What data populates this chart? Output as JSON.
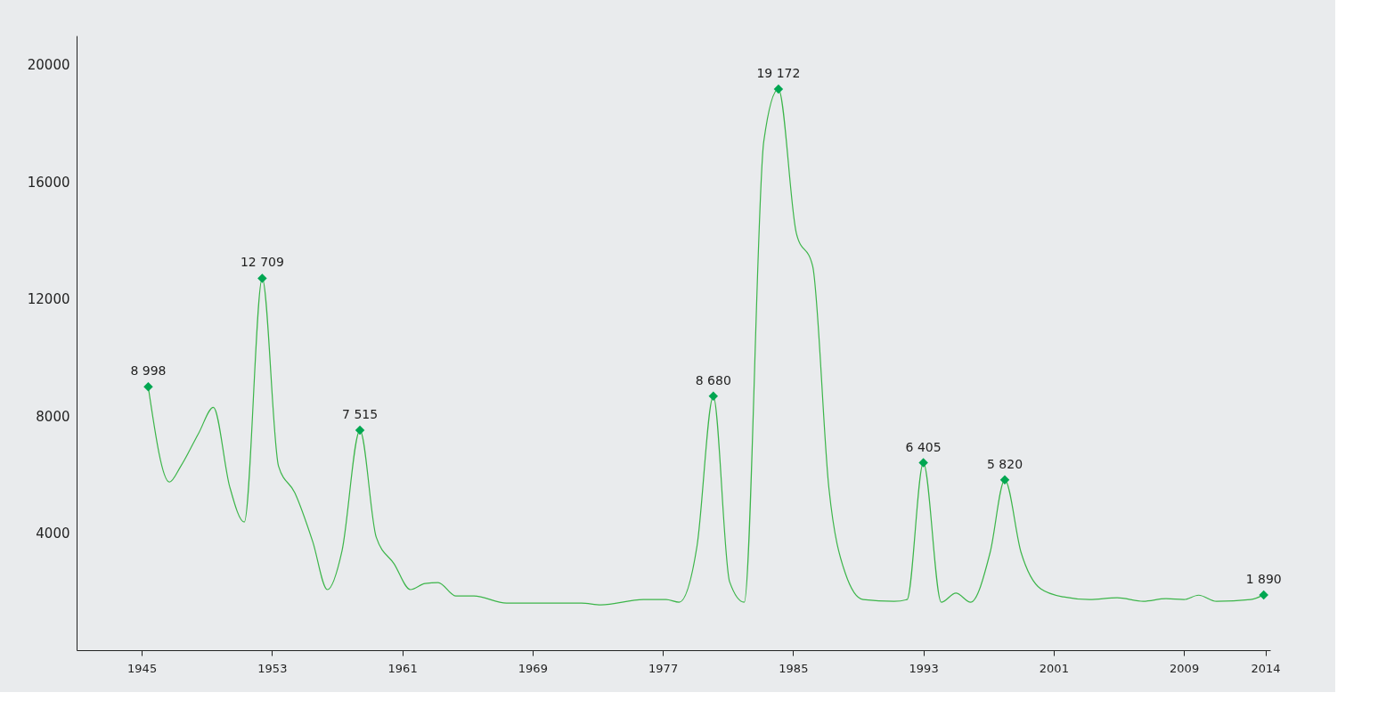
{
  "chart_data": {
    "type": "line",
    "xlim": [
      1941,
      2014.3
    ],
    "xticks": [
      1945,
      1953,
      1961,
      1969,
      1977,
      1985,
      1993,
      2001,
      2009,
      2014
    ],
    "ylim": [
      0,
      21000
    ],
    "yticks": [
      4000,
      8000,
      12000,
      16000,
      20000
    ],
    "grid": false,
    "series": [
      {
        "color": "#3cb54a",
        "marker": "none",
        "line_style": "solid",
        "x": [
          1945.4,
          1946.7,
          1947.4,
          1948.5,
          1949.4,
          1950.4,
          1951.3,
          1952.4,
          1953.4,
          1954.4,
          1955.5,
          1956.4,
          1957.3,
          1958.4,
          1959.4,
          1960.5,
          1961.5,
          1962.4,
          1963.2,
          1964.3,
          1965.4,
          1967.4,
          1972.0,
          1973.2,
          1975.8,
          1977.2,
          1978.0,
          1979.1,
          1980.1,
          1981.1,
          1982.0,
          1983.2,
          1984.1,
          1985.2,
          1986.2,
          1987.2,
          1988.2,
          1989.3,
          1991.2,
          1992.0,
          1993.0,
          1994.1,
          1995.0,
          1995.9,
          1997.1,
          1998.0,
          1999.0,
          2000.2,
          2001.6,
          2003.2,
          2004.9,
          2006.5,
          2007.9,
          2009.0,
          2009.9,
          2011.0,
          2013.1,
          2013.9
        ],
        "values": [
          8998,
          5745,
          6290,
          7420,
          8300,
          5590,
          4380,
          12709,
          6290,
          5380,
          3710,
          2070,
          3400,
          7515,
          3860,
          2950,
          2070,
          2280,
          2310,
          1850,
          1850,
          1610,
          1610,
          1550,
          1730,
          1730,
          1640,
          3560,
          8680,
          2340,
          1640,
          17390,
          19172,
          14250,
          13130,
          5530,
          2640,
          1730,
          1670,
          1730,
          6405,
          1640,
          1950,
          1640,
          3340,
          5820,
          3340,
          2100,
          1820,
          1730,
          1790,
          1670,
          1760,
          1730,
          1880,
          1670,
          1730,
          1890
        ]
      },
      {
        "type": "scatter",
        "color": "#00a651",
        "marker": "diamond",
        "x": [
          1945.4,
          1952.4,
          1958.4,
          1980.1,
          1984.1,
          1993.0,
          1998.0,
          2013.9
        ],
        "values": [
          8998,
          12709,
          7515,
          8680,
          19172,
          6405,
          5820,
          1890
        ],
        "value_labels": [
          "8 998",
          "12 709",
          "7 515",
          "8 680",
          "19 172",
          "6 405",
          "5 820",
          "1 890"
        ]
      }
    ]
  }
}
